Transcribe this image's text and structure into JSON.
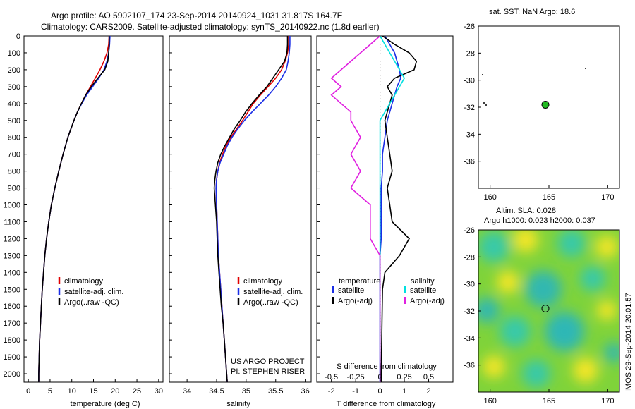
{
  "header": {
    "line1": "Argo profile: AO 5902107_174 23-Sep-2014 20140924_1031 31.817S 164.7E",
    "line2": "Climatology: CARS2009. Satellite-adjusted climatology: synTS_20140922.nc (1.8d earlier)"
  },
  "colors": {
    "climatology": "#e00000",
    "satellite": "#1a2ee6",
    "argo": "#000000",
    "sat_s": "#00e0e0",
    "argo_s": "#e020e0",
    "float": "#22bb22"
  },
  "chart_data": [
    {
      "type": "line",
      "panel": "temperature",
      "xlabel": "temperature (deg C)",
      "ylabel": "",
      "xlim": [
        -1,
        31
      ],
      "ylim": [
        2050,
        0
      ],
      "xticks": [
        "0",
        "5",
        "10",
        "15",
        "20",
        "25",
        "30"
      ],
      "yticks": [
        "0",
        "100",
        "200",
        "300",
        "400",
        "500",
        "600",
        "700",
        "800",
        "900",
        "1000",
        "1100",
        "1200",
        "1300",
        "1400",
        "1500",
        "1600",
        "1700",
        "1800",
        "1900",
        "2000"
      ],
      "depth": [
        0,
        50,
        100,
        150,
        200,
        250,
        300,
        350,
        400,
        450,
        500,
        550,
        600,
        700,
        800,
        900,
        1000,
        1100,
        1200,
        1300,
        1400,
        1500,
        1600,
        1700,
        1800,
        1900,
        2000,
        2050
      ],
      "series": [
        {
          "name": "climatology",
          "values": [
            18.6,
            18.5,
            18.1,
            17.4,
            16.5,
            15.4,
            14.3,
            13.2,
            12.2,
            11.3,
            10.5,
            9.8,
            9.1,
            8.0,
            7.0,
            6.1,
            5.3,
            4.7,
            4.2,
            3.8,
            3.5,
            3.2,
            3.0,
            2.8,
            2.6,
            2.5,
            2.4,
            2.4
          ]
        },
        {
          "name": "satellite-adj. clim.",
          "values": [
            18.8,
            18.7,
            18.5,
            18.1,
            17.4,
            16.2,
            14.8,
            13.4,
            12.3,
            11.3,
            10.5,
            9.8,
            9.1,
            8.0,
            7.0,
            6.1,
            5.3,
            4.7,
            4.2,
            3.8,
            3.5,
            3.2,
            3.0,
            2.8,
            2.6,
            2.5,
            2.4,
            2.4
          ]
        },
        {
          "name": "Argo(..raw -QC)",
          "values": [
            18.6,
            18.6,
            18.5,
            18.3,
            17.6,
            16.0,
            14.5,
            13.2,
            12.2,
            11.3,
            10.5,
            9.8,
            9.1,
            8.0,
            7.0,
            6.1,
            5.3,
            4.7,
            4.2,
            3.8,
            3.5,
            3.2,
            3.0,
            2.8,
            2.6,
            2.5,
            2.4,
            2.4
          ]
        }
      ],
      "legend": [
        "climatology",
        "satellite-adj. clim.",
        "Argo(..raw -QC)"
      ]
    },
    {
      "type": "line",
      "panel": "salinity",
      "xlabel": "salinity",
      "xlim": [
        33.7,
        36.1
      ],
      "xticks": [
        "34",
        "34.5",
        "35",
        "35.5",
        "36"
      ],
      "depth": [
        0,
        50,
        100,
        150,
        200,
        250,
        300,
        350,
        400,
        450,
        500,
        550,
        600,
        650,
        700,
        750,
        800,
        850,
        900,
        1000,
        1100,
        1200,
        1300,
        1400,
        1500,
        1600,
        1700,
        1800,
        1900,
        2000,
        2050
      ],
      "series": [
        {
          "name": "climatology",
          "values": [
            35.72,
            35.72,
            35.7,
            35.66,
            35.6,
            35.5,
            35.37,
            35.24,
            35.12,
            35.03,
            34.94,
            34.84,
            34.74,
            34.66,
            34.6,
            34.55,
            34.52,
            34.5,
            34.49,
            34.5,
            34.51,
            34.52,
            34.53,
            34.55,
            34.57,
            34.59,
            34.61,
            34.63,
            34.65,
            34.67,
            34.68
          ]
        },
        {
          "name": "satellite-adj. clim.",
          "values": [
            35.74,
            35.74,
            35.73,
            35.71,
            35.68,
            35.6,
            35.5,
            35.38,
            35.24,
            35.1,
            34.97,
            34.86,
            34.76,
            34.68,
            34.62,
            34.56,
            34.52,
            34.5,
            34.49,
            34.5,
            34.51,
            34.52,
            34.53,
            34.55,
            34.57,
            34.59,
            34.61,
            34.63,
            34.65,
            34.67,
            34.68
          ]
        },
        {
          "name": "Argo(..raw -QC)",
          "values": [
            35.7,
            35.7,
            35.69,
            35.65,
            35.55,
            35.45,
            35.35,
            35.22,
            35.1,
            34.99,
            34.9,
            34.8,
            34.72,
            34.64,
            34.57,
            34.52,
            34.49,
            34.47,
            34.46,
            34.48,
            34.5,
            34.51,
            34.52,
            34.54,
            34.56,
            34.58,
            34.61,
            34.63,
            34.65,
            34.67,
            34.68
          ]
        }
      ],
      "legend": [
        "climatology",
        "satellite-adj. clim.",
        "Argo(..raw -QC)"
      ],
      "credit1": "US ARGO PROJECT",
      "credit2": "PI: STEPHEN RISER"
    },
    {
      "type": "line",
      "panel": "difference",
      "xlabel": "T difference from climatology",
      "xlabel_top": "S difference from climatology",
      "xlim": [
        -2.6,
        3.0
      ],
      "xticks": [
        "-2",
        "-1",
        "0",
        "1",
        "2"
      ],
      "xticks_s": [
        "-0.5",
        "-0.25",
        "0",
        "0.25",
        "0.5"
      ],
      "depth": [
        0,
        50,
        100,
        150,
        200,
        250,
        300,
        350,
        400,
        450,
        500,
        600,
        700,
        800,
        900,
        1000,
        1100,
        1200,
        1300,
        1400,
        1500,
        2000,
        2050
      ],
      "series": [
        {
          "name": "satellite T",
          "values": [
            0.2,
            0.4,
            0.6,
            0.7,
            0.8,
            0.85,
            0.7,
            0.6,
            0.5,
            0.4,
            0.3,
            0.2,
            0.1,
            0.1,
            0.05,
            0.05,
            0.05,
            0.05,
            0.0,
            0.0,
            0.0,
            0.0,
            0.0
          ]
        },
        {
          "name": "Argo(-adj) T",
          "values": [
            0.1,
            0.6,
            1.2,
            1.5,
            1.4,
            0.6,
            0.3,
            0.5,
            0.4,
            0.3,
            0.2,
            0.3,
            0.4,
            0.5,
            0.3,
            0.4,
            0.5,
            1.2,
            0.8,
            0.2,
            0.1,
            0.05,
            0.05
          ]
        },
        {
          "name": "satellite S",
          "values": [
            0.0,
            0.05,
            0.1,
            0.15,
            0.2,
            0.25,
            0.2,
            0.15,
            0.1,
            0.05,
            0.0,
            0.0,
            0.0,
            0.0,
            0.0,
            0.0,
            0.0,
            0.0,
            0.0,
            0.0,
            0.0,
            0.0,
            0.0
          ]
        },
        {
          "name": "Argo(-adj) S",
          "values": [
            0.0,
            -0.1,
            -0.2,
            -0.3,
            -0.4,
            -0.5,
            -0.4,
            -0.5,
            -0.4,
            -0.3,
            -0.3,
            -0.2,
            -0.3,
            -0.2,
            -0.3,
            -0.1,
            -0.1,
            -0.1,
            0.0,
            0.0,
            0.0,
            0.0,
            0.0
          ]
        }
      ],
      "legend_temp_title": "temperature",
      "legend_sal_title": "salinity",
      "legend": [
        "satellite",
        "Argo(-adj)"
      ]
    },
    {
      "type": "scatter",
      "panel": "sst-map",
      "title": "sat. SST: NaN Argo: 18.6",
      "xlim": [
        159,
        171
      ],
      "ylim": [
        -38,
        -26
      ],
      "xticks": [
        "160",
        "165",
        "170"
      ],
      "yticks": [
        "-26",
        "-28",
        "-30",
        "-32",
        "-34",
        "-36"
      ],
      "points": [
        {
          "lon": 164.7,
          "lat": -31.817
        }
      ]
    },
    {
      "type": "heatmap",
      "panel": "sla-map",
      "title1": "Altim. SLA: 0.028",
      "title2": "Argo h1000: 0.023 h2000: 0.037",
      "xlim": [
        159,
        171
      ],
      "ylim": [
        -38,
        -26
      ],
      "xticks": [
        "160",
        "165",
        "170"
      ],
      "yticks": [
        "-26",
        "-28",
        "-30",
        "-32",
        "-34",
        "-36"
      ],
      "points": [
        {
          "lon": 164.7,
          "lat": -31.817
        }
      ]
    }
  ],
  "watermark": "IMOS 29-Sep-2014 20:01:57"
}
